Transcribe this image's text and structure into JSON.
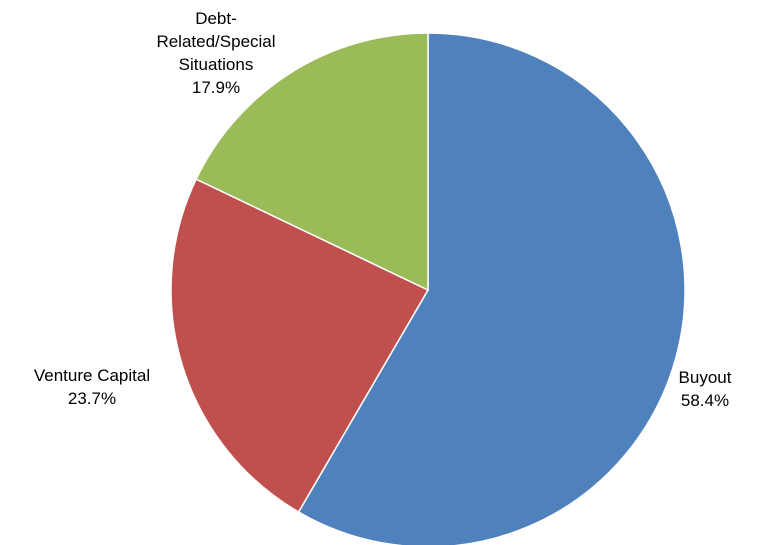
{
  "chart_data": {
    "type": "pie",
    "title": "",
    "start_angle_deg": 0,
    "direction": "clockwise",
    "slices": [
      {
        "name": "Buyout",
        "label_lines": [
          "Buyout"
        ],
        "percent_label": "58.4%",
        "value": 58.4,
        "color": "#4F81BD"
      },
      {
        "name": "Venture Capital",
        "label_lines": [
          "Venture Capital"
        ],
        "percent_label": "23.7%",
        "value": 23.7,
        "color": "#C0504D"
      },
      {
        "name": "Debt-Related/Special Situations",
        "label_lines": [
          "Debt-",
          "Related/Special",
          "Situations"
        ],
        "percent_label": "17.9%",
        "value": 17.9,
        "color": "#9BBB59"
      }
    ],
    "legend": "none",
    "data_labels": "outside"
  }
}
